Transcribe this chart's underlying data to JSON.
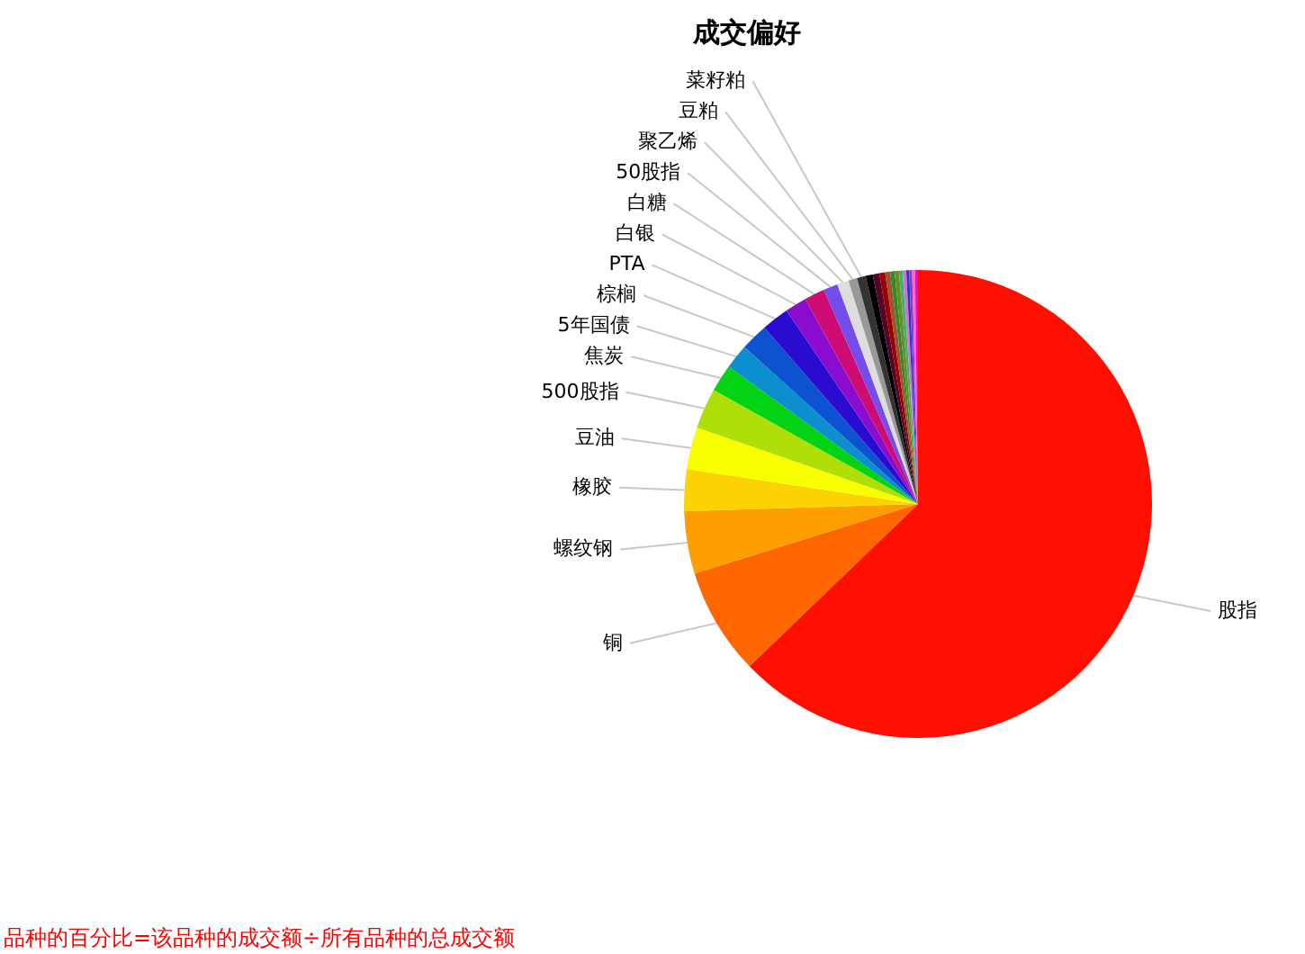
{
  "chart_data": {
    "type": "pie",
    "title": "成交偏好",
    "categories": [
      "股指",
      "铜",
      "螺纹钢",
      "橡胶",
      "豆油",
      "500股指",
      "焦炭",
      "5年国债",
      "棕榈",
      "PTA",
      "白银",
      "白糖",
      "50股指",
      "聚乙烯",
      "豆粕",
      "菜籽粕",
      null,
      null,
      null,
      null,
      null,
      null,
      null,
      null,
      null,
      null,
      null,
      null
    ],
    "values": [
      62.8,
      7.4,
      4.3,
      2.9,
      2.9,
      2.8,
      1.9,
      1.7,
      1.9,
      1.9,
      1.5,
      1.4,
      1.0,
      0.8,
      0.6,
      0.6,
      0.5,
      0.45,
      0.4,
      0.35,
      0.3,
      0.3,
      0.25,
      0.25,
      0.2,
      0.2,
      0.2,
      0.2
    ],
    "colors": [
      "#ff0f00",
      "#ff6600",
      "#ff9e01",
      "#fcd202",
      "#f8ff01",
      "#b0de09",
      "#04d215",
      "#0d8ecf",
      "#0d52d1",
      "#2a0cd0",
      "#8a0ccf",
      "#cd0d74",
      "#754deb",
      "#dddddd",
      "#999999",
      "#333333",
      "#000000",
      "#57032a",
      "#990000",
      "#a0522d",
      "#2e8b2e",
      "#6b8e23",
      "#3cb371",
      "#da70d6",
      "#1f3fbf",
      "#9932cc",
      "#ff69b4",
      "#ee00ee"
    ],
    "annotations": [
      "品种的百分比=该品种的成交额÷所有品种的总成交额"
    ]
  }
}
